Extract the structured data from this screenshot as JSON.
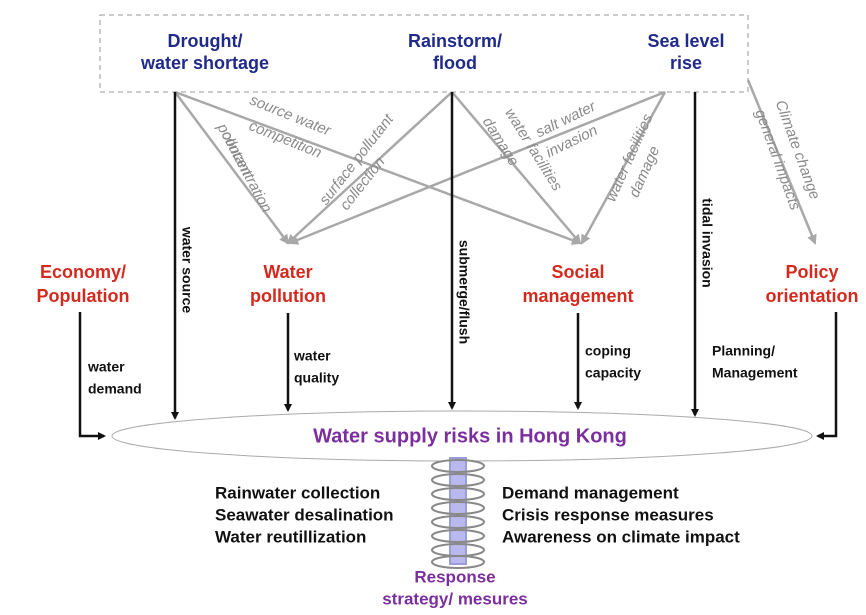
{
  "top_nodes": [
    {
      "lines": [
        "Drought/",
        "water shortage"
      ]
    },
    {
      "lines": [
        "Rainstorm/",
        "flood"
      ]
    },
    {
      "lines": [
        "Sea level",
        "rise"
      ]
    }
  ],
  "impact_nodes": [
    {
      "lines": [
        "Economy/",
        "Population"
      ]
    },
    {
      "lines": [
        "Water",
        "pollution"
      ]
    },
    {
      "lines": [
        "Social",
        "management"
      ]
    },
    {
      "lines": [
        "Policy",
        "orientation"
      ]
    }
  ],
  "gray_labels": [
    {
      "lines": [
        "source water",
        "competition"
      ]
    },
    {
      "lines": [
        "pollutant",
        "concentration"
      ]
    },
    {
      "lines": [
        "surface pollutant",
        "collection"
      ]
    },
    {
      "lines": [
        "water facilities",
        "damage"
      ]
    },
    {
      "lines": [
        "salt water",
        "invasion"
      ]
    },
    {
      "lines": [
        "water facilities",
        "damage"
      ]
    },
    {
      "lines": [
        "Climate change",
        "general impacts"
      ]
    }
  ],
  "direct_labels": [
    "water source",
    "submerge/flush",
    "tidal invasion"
  ],
  "node_labels": [
    {
      "lines": [
        "water",
        "demand"
      ]
    },
    {
      "lines": [
        "water",
        "quality"
      ]
    },
    {
      "lines": [
        "coping",
        "capacity"
      ]
    },
    {
      "lines": [
        "Planning/",
        "Management"
      ]
    }
  ],
  "center": "Water supply risks in Hong Kong",
  "responses_left": [
    "Rainwater collection",
    "Seawater desalination",
    "Water reutillization"
  ],
  "responses_right": [
    "Demand management",
    "Crisis response measures",
    "Awareness on climate impact"
  ],
  "response_title": {
    "lines": [
      "Response",
      "strategy/ mesures"
    ]
  }
}
